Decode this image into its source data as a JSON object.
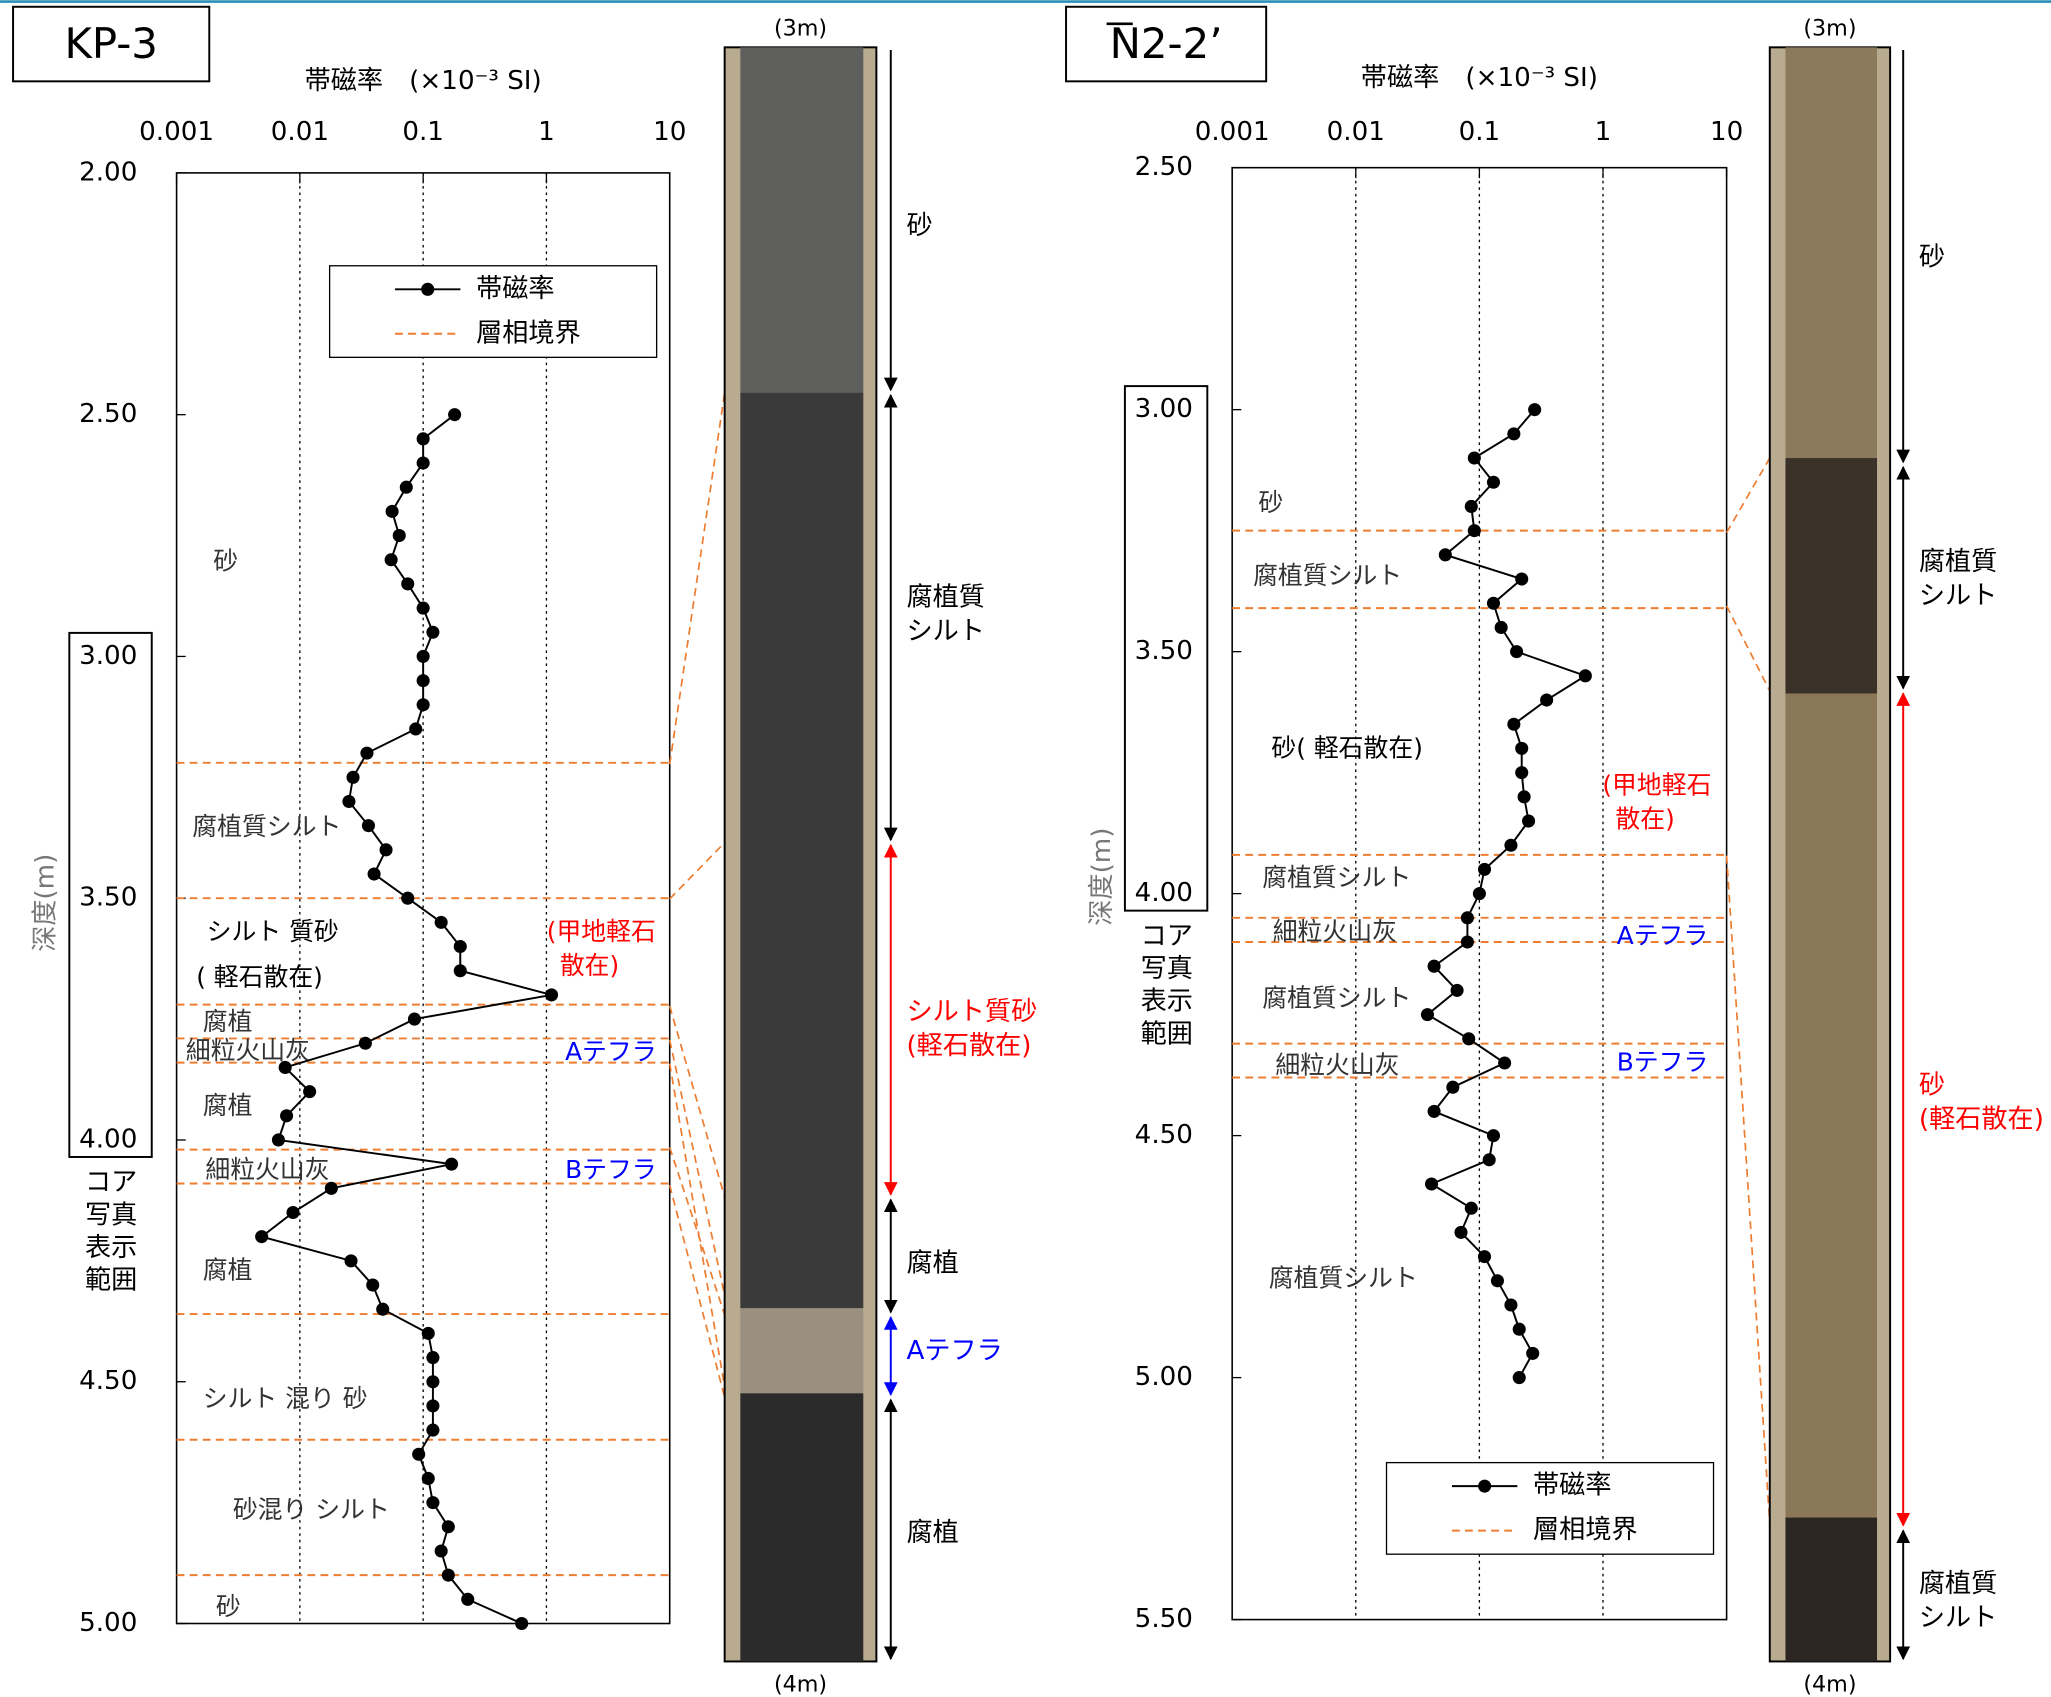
{
  "chart_data": [
    {
      "type": "line",
      "title": "KP-3",
      "xlabel": "帯磁率　(×10⁻³ SI)",
      "ylabel": "深度(m)",
      "xscale": "log",
      "xlim": [
        0.001,
        10
      ],
      "xticks": [
        0.001,
        0.01,
        0.1,
        1,
        10
      ],
      "grid": true,
      "ylim": [
        2,
        5
      ],
      "y_reversed": true,
      "yticks": [
        {
          "value": 2,
          "label": "2.00"
        },
        {
          "value": 2.5,
          "label": "2.50"
        },
        {
          "value": 3,
          "label": "3.00"
        },
        {
          "value": 3.5,
          "label": "3.50"
        },
        {
          "value": 4,
          "label": "4.00"
        },
        {
          "value": 4.5,
          "label": "4.50"
        },
        {
          "value": 5,
          "label": "5.00"
        }
      ],
      "legend": "upper right",
      "series": [
        {
          "name": "帯磁率",
          "color": "#000000",
          "y": [
            2.5,
            2.55,
            2.6,
            2.65,
            2.7,
            2.75,
            2.8,
            2.85,
            2.9,
            2.95,
            3.0,
            3.05,
            3.1,
            3.15,
            3.2,
            3.25,
            3.3,
            3.35,
            3.4,
            3.45,
            3.5,
            3.55,
            3.6,
            3.65,
            3.7,
            3.75,
            3.8,
            3.85,
            3.9,
            3.95,
            4.0,
            4.05,
            4.1,
            4.15,
            4.2,
            4.25,
            4.3,
            4.35,
            4.4,
            4.45,
            4.5,
            4.55,
            4.6,
            4.65,
            4.7,
            4.75,
            4.8,
            4.85,
            4.9,
            4.95,
            5.0
          ],
          "values": [
            0.18,
            0.1,
            0.1,
            0.073,
            0.056,
            0.064,
            0.055,
            0.075,
            0.1,
            0.12,
            0.1,
            0.1,
            0.1,
            0.087,
            0.035,
            0.027,
            0.025,
            0.036,
            0.05,
            0.04,
            0.075,
            0.14,
            0.2,
            0.2,
            1.1,
            0.085,
            0.034,
            0.0076,
            0.012,
            0.0078,
            0.0067,
            0.17,
            0.018,
            0.0088,
            0.0049,
            0.026,
            0.039,
            0.047,
            0.11,
            0.12,
            0.12,
            0.12,
            0.12,
            0.092,
            0.11,
            0.12,
            0.16,
            0.14,
            0.16,
            0.23,
            0.63
          ]
        }
      ],
      "boundaries": {
        "name": "層相境界",
        "color": "#ed7d31",
        "depths": [
          3.22,
          3.5,
          3.72,
          3.79,
          3.84,
          4.02,
          4.09,
          4.36,
          4.62,
          4.9
        ]
      },
      "facies": [
        {
          "text": "砂",
          "color": "#333333"
        },
        {
          "text": "腐植質シルト",
          "color": "#333333"
        },
        {
          "text": "シルト 質砂",
          "color": "#000000"
        },
        {
          "text": "( 軽石散在)",
          "color": "#000000"
        },
        {
          "text": "(甲地軽石",
          "color": "#ff0000"
        },
        {
          "text": "散在)",
          "color": "#ff0000"
        },
        {
          "text": "腐植",
          "color": "#333333"
        },
        {
          "text": "細粒火山灰",
          "color": "#333333"
        },
        {
          "text": "Aテフラ",
          "color": "#0000ff"
        },
        {
          "text": "腐植",
          "color": "#333333"
        },
        {
          "text": "細粒火山灰",
          "color": "#333333"
        },
        {
          "text": "Bテフラ",
          "color": "#0000ff"
        },
        {
          "text": "腐植",
          "color": "#333333"
        },
        {
          "text": "シルト 混り 砂",
          "color": "#333333"
        },
        {
          "text": "砂混り シルト",
          "color": "#333333"
        },
        {
          "text": "砂",
          "color": "#333333"
        }
      ],
      "photo_range": [
        3,
        4
      ],
      "photo_range_label": [
        "コア",
        "写真",
        "表示",
        "範囲"
      ],
      "photo": {
        "top": "(3m)",
        "bottom": "(4m)",
        "units": [
          {
            "lines": [
              "砂"
            ],
            "color": "#000000"
          },
          {
            "lines": [
              "腐植質",
              "シルト"
            ],
            "color": "#000000"
          },
          {
            "lines": [
              "シルト質砂",
              "(軽石散在)"
            ],
            "color": "#ff0000"
          },
          {
            "lines": [
              "腐植"
            ],
            "color": "#000000"
          },
          {
            "lines": [
              "Aテフラ"
            ],
            "color": "#0000ff"
          },
          {
            "lines": [
              "腐植"
            ],
            "color": "#000000"
          }
        ]
      }
    },
    {
      "type": "line",
      "title": "N2-2’",
      "xlabel": "帯磁率　(×10⁻³ SI)",
      "ylabel": "深度(m)",
      "xscale": "log",
      "xlim": [
        0.001,
        10
      ],
      "xticks": [
        0.001,
        0.01,
        0.1,
        1,
        10
      ],
      "grid": true,
      "ylim": [
        2.5,
        5.5
      ],
      "y_reversed": true,
      "yticks": [
        {
          "value": 2.5,
          "label": "2.50"
        },
        {
          "value": 3,
          "label": "3.00"
        },
        {
          "value": 3.5,
          "label": "3.50"
        },
        {
          "value": 4,
          "label": "4.00"
        },
        {
          "value": 4.5,
          "label": "4.50"
        },
        {
          "value": 5,
          "label": "5.00"
        },
        {
          "value": 5.5,
          "label": "5.50"
        }
      ],
      "legend": "lower right",
      "series": [
        {
          "name": "帯磁率",
          "color": "#000000",
          "y": [
            3.0,
            3.05,
            3.1,
            3.15,
            3.2,
            3.25,
            3.3,
            3.35,
            3.4,
            3.45,
            3.5,
            3.55,
            3.6,
            3.65,
            3.7,
            3.75,
            3.8,
            3.85,
            3.9,
            3.95,
            4.0,
            4.05,
            4.1,
            4.15,
            4.2,
            4.25,
            4.3,
            4.35,
            4.4,
            4.45,
            4.5,
            4.55,
            4.6,
            4.65,
            4.7,
            4.75,
            4.8,
            4.85,
            4.9,
            4.95,
            5.0
          ],
          "values": [
            0.28,
            0.19,
            0.091,
            0.13,
            0.086,
            0.091,
            0.053,
            0.22,
            0.13,
            0.15,
            0.2,
            0.72,
            0.35,
            0.19,
            0.22,
            0.22,
            0.23,
            0.25,
            0.18,
            0.11,
            0.1,
            0.08,
            0.08,
            0.043,
            0.066,
            0.038,
            0.082,
            0.16,
            0.061,
            0.043,
            0.13,
            0.12,
            0.041,
            0.086,
            0.071,
            0.11,
            0.14,
            0.18,
            0.21,
            0.27,
            0.21
          ]
        }
      ],
      "boundaries": {
        "name": "層相境界",
        "color": "#ed7d31",
        "depths": [
          3.25,
          3.41,
          3.92,
          4.05,
          4.1,
          4.31,
          4.38
        ]
      },
      "facies": [
        {
          "text": "砂",
          "color": "#333333"
        },
        {
          "text": "腐植質シルト",
          "color": "#333333"
        },
        {
          "text": "砂( 軽石散在)",
          "color": "#000000"
        },
        {
          "text": "(甲地軽石",
          "color": "#ff0000"
        },
        {
          "text": "散在)",
          "color": "#ff0000"
        },
        {
          "text": "腐植質シルト",
          "color": "#333333"
        },
        {
          "text": "細粒火山灰",
          "color": "#333333"
        },
        {
          "text": "Aテフラ",
          "color": "#0000ff"
        },
        {
          "text": "腐植質シルト",
          "color": "#333333"
        },
        {
          "text": "細粒火山灰",
          "color": "#333333"
        },
        {
          "text": "Bテフラ",
          "color": "#0000ff"
        },
        {
          "text": "腐植質シルト",
          "color": "#333333"
        }
      ],
      "photo_range": [
        3,
        4
      ],
      "photo_range_label": [
        "コア",
        "写真",
        "表示",
        "範囲"
      ],
      "photo": {
        "top": "(3m)",
        "bottom": "(4m)",
        "units": [
          {
            "lines": [
              "砂"
            ],
            "color": "#000000"
          },
          {
            "lines": [
              "腐植質",
              "シルト"
            ],
            "color": "#000000"
          },
          {
            "lines": [
              "砂",
              "(軽石散在)"
            ],
            "color": "#ff0000"
          },
          {
            "lines": [
              "腐植質",
              "シルト"
            ],
            "color": "#000000"
          }
        ]
      }
    }
  ]
}
